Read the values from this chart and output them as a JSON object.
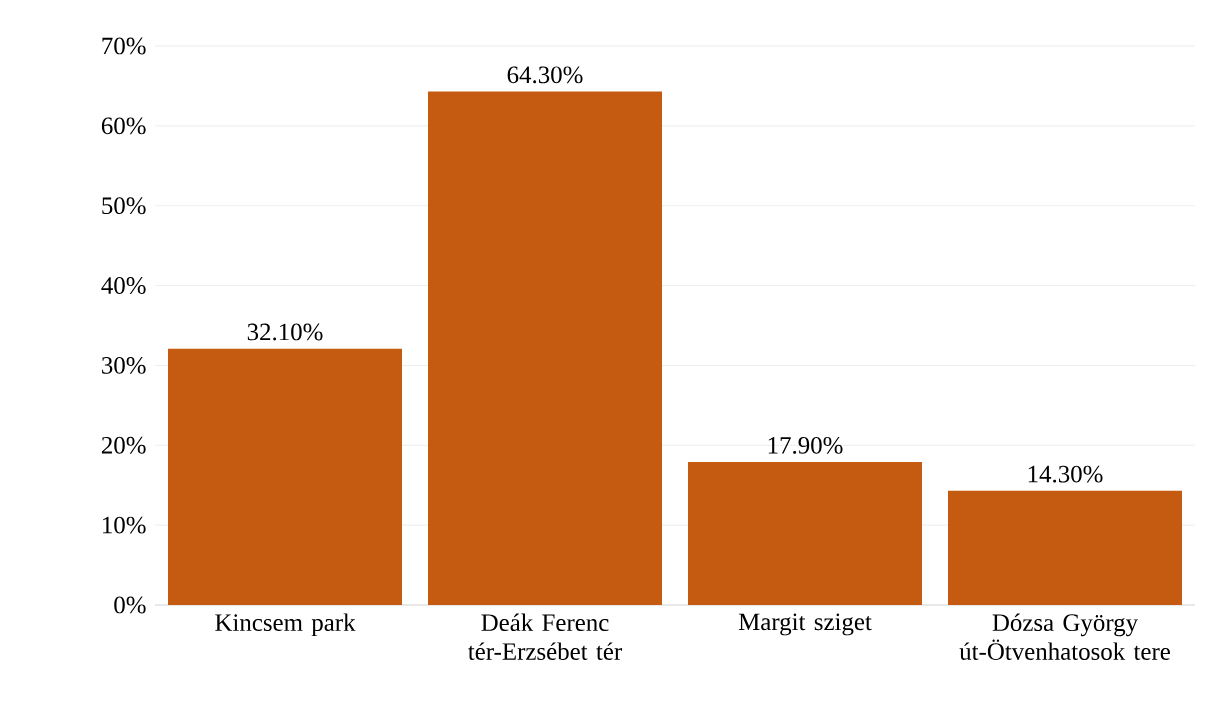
{
  "chart_data": {
    "type": "bar",
    "categories": [
      "Kincsem park",
      "Deák Ferenc tér-Erzsébet tér",
      "Margit sziget",
      "Dózsa György út-Ötvenhatosok tere"
    ],
    "values": [
      32.1,
      64.3,
      17.9,
      14.3
    ],
    "value_labels": [
      "32.10%",
      "64.30%",
      "17.90%",
      "14.30%"
    ],
    "color": "#c55a11",
    "ylim": [
      0,
      70
    ],
    "yticks": [
      {
        "value": 0,
        "label": "0%"
      },
      {
        "value": 10,
        "label": "10%"
      },
      {
        "value": 20,
        "label": "20%"
      },
      {
        "value": 30,
        "label": "30%"
      },
      {
        "value": 40,
        "label": "40%"
      },
      {
        "value": 50,
        "label": "50%"
      },
      {
        "value": 60,
        "label": "60%"
      },
      {
        "value": 70,
        "label": "70%"
      }
    ],
    "grid": "y"
  }
}
